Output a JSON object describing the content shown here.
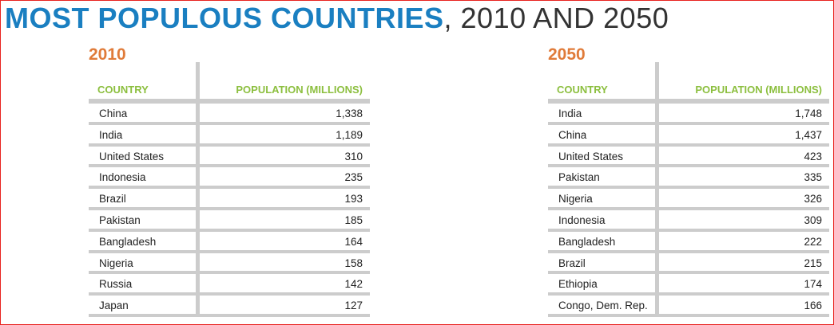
{
  "title": {
    "bold": "MOST POPULOUS COUNTRIES",
    "rest": ", 2010 AND 2050"
  },
  "colors": {
    "title_blue": "#1a7fc1",
    "year_orange": "#e07b39",
    "header_green": "#8cbf3f",
    "divider_gray": "#cccccc",
    "frame_red": "#e8231f"
  },
  "tables": [
    {
      "year": "2010",
      "col_country": "COUNTRY",
      "col_population": "POPULATION (MILLIONS)",
      "rows": [
        {
          "country": "China",
          "population": "1,338"
        },
        {
          "country": "India",
          "population": "1,189"
        },
        {
          "country": "United States",
          "population": "310"
        },
        {
          "country": "Indonesia",
          "population": "235"
        },
        {
          "country": "Brazil",
          "population": "193"
        },
        {
          "country": "Pakistan",
          "population": "185"
        },
        {
          "country": "Bangladesh",
          "population": "164"
        },
        {
          "country": "Nigeria",
          "population": "158"
        },
        {
          "country": "Russia",
          "population": "142"
        },
        {
          "country": "Japan",
          "population": "127"
        }
      ]
    },
    {
      "year": "2050",
      "col_country": "COUNTRY",
      "col_population": "POPULATION (MILLIONS)",
      "rows": [
        {
          "country": "India",
          "population": "1,748"
        },
        {
          "country": "China",
          "population": "1,437"
        },
        {
          "country": "United States",
          "population": "423"
        },
        {
          "country": "Pakistan",
          "population": "335"
        },
        {
          "country": "Nigeria",
          "population": "326"
        },
        {
          "country": "Indonesia",
          "population": "309"
        },
        {
          "country": "Bangladesh",
          "population": "222"
        },
        {
          "country": "Brazil",
          "population": "215"
        },
        {
          "country": "Ethiopia",
          "population": "174"
        },
        {
          "country": "Congo, Dem. Rep.",
          "population": "166"
        }
      ]
    }
  ]
}
